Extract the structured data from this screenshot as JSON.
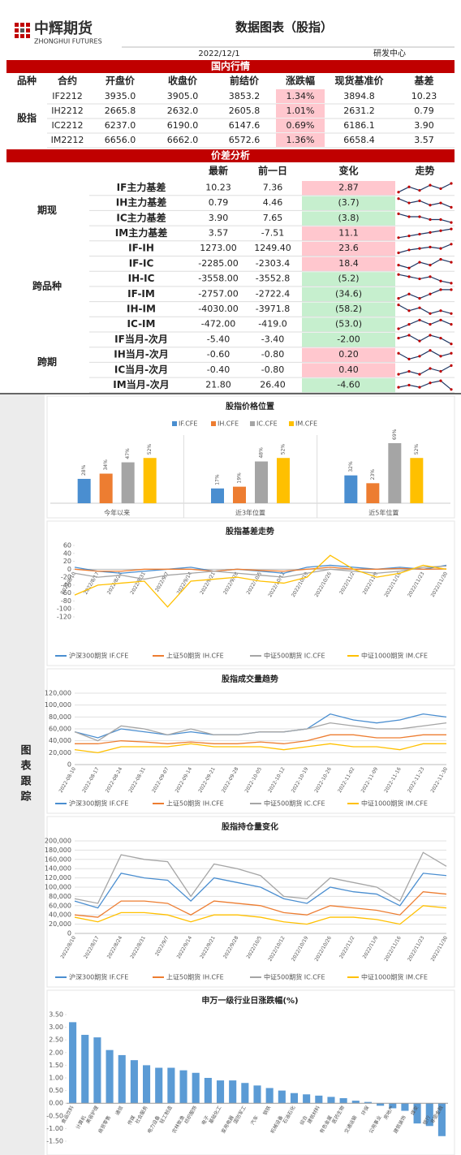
{
  "header": {
    "logo_cn": "中辉期货",
    "logo_en": "ZHONGHUI FUTURES",
    "title": "数据图表（股指）",
    "date": "2022/12/1",
    "dept": "研发中心"
  },
  "table_market": {
    "band": "国内行情",
    "columns": [
      "品种",
      "合约",
      "开盘价",
      "收盘价",
      "前结价",
      "涨跌幅",
      "现货基准价",
      "基差"
    ],
    "group": "股指",
    "rows": [
      {
        "cells": [
          "IF2212",
          "3935.0",
          "3905.0",
          "3853.2",
          "1.34%",
          "3894.8",
          "10.23"
        ],
        "color": "#ffc7ce"
      },
      {
        "cells": [
          "IH2212",
          "2665.8",
          "2632.0",
          "2605.8",
          "1.01%",
          "2631.2",
          "0.79"
        ],
        "color": "#ffc7ce"
      },
      {
        "cells": [
          "IC2212",
          "6237.0",
          "6190.0",
          "6147.6",
          "0.69%",
          "6186.1",
          "3.90"
        ],
        "color": "#ffc7ce"
      },
      {
        "cells": [
          "IM2212",
          "6656.0",
          "6662.0",
          "6572.6",
          "1.36%",
          "6658.4",
          "3.57"
        ],
        "color": "#ffc7ce"
      }
    ]
  },
  "table_spread": {
    "band": "价差分析",
    "columns": [
      "最新",
      "前一日",
      "变化",
      "走势"
    ],
    "groups": [
      {
        "name": "期现",
        "rows": [
          {
            "name": "IF主力基差",
            "latest": "10.23",
            "prev": "7.36",
            "change": "2.87",
            "color": "#ffc7ce",
            "trend": [
              3,
              6,
              4,
              7,
              5,
              8
            ]
          },
          {
            "name": "IH主力基差",
            "latest": "0.79",
            "prev": "4.46",
            "change": "(3.7)",
            "color": "#c6efce",
            "trend": [
              7,
              5,
              6,
              4,
              5,
              3
            ]
          },
          {
            "name": "IC主力基差",
            "latest": "3.90",
            "prev": "7.65",
            "change": "(3.8)",
            "color": "#c6efce",
            "trend": [
              6,
              5,
              5,
              4,
              4,
              3
            ]
          },
          {
            "name": "IM主力基差",
            "latest": "3.57",
            "prev": "-7.51",
            "change": "11.1",
            "color": "#ffc7ce",
            "trend": [
              2,
              3,
              4,
              5,
              6,
              7
            ]
          }
        ]
      },
      {
        "name": "跨品种",
        "rows": [
          {
            "name": "IF-IH",
            "latest": "1273.00",
            "prev": "1249.40",
            "change": "23.6",
            "color": "#ffc7ce",
            "trend": [
              2,
              4,
              5,
              6,
              5,
              8
            ]
          },
          {
            "name": "IF-IC",
            "latest": "-2285.00",
            "prev": "-2303.4",
            "change": "18.4",
            "color": "#ffc7ce",
            "trend": [
              5,
              4,
              6,
              5,
              7,
              6
            ]
          },
          {
            "name": "IH-IC",
            "latest": "-3558.00",
            "prev": "-3552.8",
            "change": "(5.2)",
            "color": "#c6efce",
            "trend": [
              6,
              5,
              4,
              5,
              3,
              2
            ]
          },
          {
            "name": "IF-IM",
            "latest": "-2757.00",
            "prev": "-2722.4",
            "change": "(34.6)",
            "color": "#c6efce",
            "trend": [
              3,
              4,
              3,
              4,
              5,
              5
            ]
          },
          {
            "name": "IH-IM",
            "latest": "-4030.00",
            "prev": "-3971.8",
            "change": "(58.2)",
            "color": "#c6efce",
            "trend": [
              6,
              4,
              5,
              3,
              4,
              3
            ]
          },
          {
            "name": "IC-IM",
            "latest": "-472.00",
            "prev": "-419.0",
            "change": "(53.0)",
            "color": "#c6efce",
            "trend": [
              4,
              5,
              6,
              5,
              6,
              5
            ]
          }
        ]
      },
      {
        "name": "跨期",
        "rows": [
          {
            "name": "IF当月-次月",
            "latest": "-5.40",
            "prev": "-3.40",
            "change": "-2.00",
            "color": "#c6efce",
            "trend": [
              4,
              5,
              3,
              5,
              4,
              2
            ]
          },
          {
            "name": "IH当月-次月",
            "latest": "-0.60",
            "prev": "-0.80",
            "change": "0.20",
            "color": "#ffc7ce",
            "trend": [
              5,
              3,
              4,
              6,
              4,
              5
            ]
          },
          {
            "name": "IC当月-次月",
            "latest": "-0.40",
            "prev": "-0.80",
            "change": "0.40",
            "color": "#ffc7ce",
            "trend": [
              3,
              4,
              3,
              5,
              4,
              6
            ]
          },
          {
            "name": "IM当月-次月",
            "latest": "21.80",
            "prev": "26.40",
            "change": "-4.60",
            "color": "#c6efce",
            "trend": [
              3,
              4,
              3,
              5,
              6,
              2
            ]
          }
        ]
      }
    ]
  },
  "side_label": "图表跟踪",
  "chart_data": [
    {
      "type": "grouped_bar",
      "title": "股指价格位置",
      "categories": [
        "今年以来",
        "近3年位置",
        "近5年位置"
      ],
      "series": [
        {
          "name": "IF.CFE",
          "color": "#4a8ed0",
          "values": [
            28,
            17,
            32
          ],
          "value_labels": [
            "28%",
            "17%",
            "32%"
          ]
        },
        {
          "name": "IH.CFE",
          "color": "#ed7d31",
          "values": [
            34,
            19,
            23
          ],
          "value_labels": [
            "34%",
            "19%",
            "23%"
          ]
        },
        {
          "name": "IC.CFE",
          "color": "#a5a5a5",
          "values": [
            47,
            48,
            69
          ],
          "value_labels": [
            "47%",
            "48%",
            "69%"
          ]
        },
        {
          "name": "IM.CFE",
          "color": "#ffc000",
          "values": [
            52,
            52,
            52
          ],
          "value_labels": [
            "52%",
            "52%",
            "52%"
          ]
        }
      ]
    },
    {
      "type": "line",
      "title": "股指基差走势",
      "grid": false,
      "categories": [
        "2022/8/10",
        "2022/8/17",
        "2022/8/24",
        "2022/8/31",
        "2022/9/7",
        "2022/9/14",
        "2022/9/21",
        "2022/9/28",
        "2022/10/5",
        "2022/10/12",
        "2022/10/19",
        "2022/10/26",
        "2022/11/2",
        "2022/11/9",
        "2022/11/16",
        "2022/11/23",
        "2022/11/30"
      ],
      "ylim": [
        -120,
        60
      ],
      "yticks": [
        60,
        40,
        20,
        0,
        -20,
        -40,
        -60,
        -80,
        -100,
        -120
      ],
      "series": [
        {
          "name": "沪深300期货 IF.CFE",
          "color": "#4a8ed0",
          "values": [
            5,
            -5,
            -10,
            -5,
            0,
            5,
            -5,
            0,
            -5,
            -10,
            5,
            10,
            5,
            0,
            5,
            0,
            10
          ]
        },
        {
          "name": "上证50期货 IH.CFE",
          "color": "#ed7d31",
          "values": [
            0,
            -5,
            -5,
            0,
            0,
            0,
            -5,
            0,
            -3,
            -5,
            0,
            5,
            0,
            0,
            2,
            0,
            1
          ]
        },
        {
          "name": "中证500期货 IC.CFE",
          "color": "#a5a5a5",
          "values": [
            -10,
            -20,
            -15,
            -25,
            -15,
            -10,
            -5,
            -10,
            -15,
            -20,
            -10,
            0,
            -5,
            -10,
            -5,
            5,
            8
          ]
        },
        {
          "name": "中证1000期货 IM.CFE",
          "color": "#ffc000",
          "values": [
            -65,
            -40,
            -35,
            -30,
            -95,
            -30,
            -25,
            -20,
            -30,
            -35,
            -20,
            35,
            0,
            -20,
            -10,
            10,
            0
          ]
        }
      ]
    },
    {
      "type": "line",
      "title": "股指成交量趋势",
      "grid": true,
      "categories": [
        "2022-08-10",
        "2022-08-17",
        "2022-08-24",
        "2022-08-31",
        "2022-09-07",
        "2022-09-14",
        "2022-09-21",
        "2022-09-28",
        "2022-10-05",
        "2022-10-12",
        "2022-10-19",
        "2022-10-26",
        "2022-11-02",
        "2022-11-09",
        "2022-11-16",
        "2022-11-23",
        "2022-11-30"
      ],
      "ylim": [
        0,
        120000
      ],
      "yticks": [
        0,
        {
          "value": 20000,
          "label": "20,000"
        },
        {
          "value": 40000,
          "label": "40,000"
        },
        {
          "value": 60000,
          "label": "60,000"
        },
        {
          "value": 80000,
          "label": "80,000"
        },
        {
          "value": 100000,
          "label": "100,000"
        },
        {
          "value": 120000,
          "label": "120,000"
        }
      ],
      "series": [
        {
          "name": "沪深300期货 IF.CFE",
          "color": "#4a8ed0",
          "values": [
            55000,
            45000,
            60000,
            55000,
            50000,
            55000,
            50000,
            50000,
            55000,
            55000,
            60000,
            85000,
            75000,
            70000,
            75000,
            85000,
            80000
          ]
        },
        {
          "name": "上证50期货 IH.CFE",
          "color": "#ed7d31",
          "values": [
            35000,
            35000,
            40000,
            38000,
            35000,
            38000,
            35000,
            35000,
            38000,
            35000,
            40000,
            50000,
            50000,
            45000,
            45000,
            50000,
            50000
          ]
        },
        {
          "name": "中证500期货 IC.CFE",
          "color": "#a5a5a5",
          "values": [
            55000,
            40000,
            65000,
            60000,
            50000,
            60000,
            50000,
            50000,
            55000,
            55000,
            60000,
            70000,
            65000,
            60000,
            60000,
            65000,
            70000
          ]
        },
        {
          "name": "中证1000期货 IM.CFE",
          "color": "#ffc000",
          "values": [
            25000,
            20000,
            30000,
            30000,
            30000,
            35000,
            30000,
            30000,
            30000,
            25000,
            30000,
            35000,
            30000,
            30000,
            25000,
            35000,
            35000
          ]
        }
      ]
    },
    {
      "type": "line",
      "title": "股指持仓量变化",
      "grid": true,
      "categories": [
        "2022/8/10",
        "2022/8/17",
        "2022/8/24",
        "2022/8/31",
        "2022/9/7",
        "2022/9/14",
        "2022/9/21",
        "2022/9/28",
        "2022/10/5",
        "2022/10/12",
        "2022/10/19",
        "2022/10/26",
        "2022/11/2",
        "2022/11/9",
        "2022/11/16",
        "2022/11/23",
        "2022/11/30"
      ],
      "ylim": [
        0,
        200000
      ],
      "yticks": [
        0,
        {
          "value": 20000,
          "label": "20,000"
        },
        {
          "value": 40000,
          "label": "40,000"
        },
        {
          "value": 60000,
          "label": "60,000"
        },
        {
          "value": 80000,
          "label": "80,000"
        },
        {
          "value": 100000,
          "label": "100,000"
        },
        {
          "value": 120000,
          "label": "120,000"
        },
        {
          "value": 140000,
          "label": "140,000"
        },
        {
          "value": 160000,
          "label": "160,000"
        },
        {
          "value": 180000,
          "label": "180,000"
        },
        {
          "value": 200000,
          "label": "200,000"
        }
      ],
      "series": [
        {
          "name": "沪深300期货 IF.CFE",
          "color": "#4a8ed0",
          "values": [
            70000,
            55000,
            130000,
            120000,
            115000,
            70000,
            120000,
            110000,
            100000,
            75000,
            65000,
            100000,
            90000,
            85000,
            60000,
            130000,
            125000
          ]
        },
        {
          "name": "上证50期货 IH.CFE",
          "color": "#ed7d31",
          "values": [
            40000,
            35000,
            70000,
            70000,
            65000,
            40000,
            70000,
            65000,
            60000,
            45000,
            40000,
            60000,
            55000,
            50000,
            40000,
            90000,
            85000
          ]
        },
        {
          "name": "中证500期货 IC.CFE",
          "color": "#a5a5a5",
          "values": [
            75000,
            65000,
            170000,
            160000,
            155000,
            80000,
            150000,
            140000,
            125000,
            80000,
            75000,
            120000,
            110000,
            100000,
            70000,
            175000,
            145000
          ]
        },
        {
          "name": "中证1000期货 IM.CFE",
          "color": "#ffc000",
          "values": [
            35000,
            25000,
            45000,
            45000,
            40000,
            25000,
            40000,
            40000,
            35000,
            25000,
            20000,
            35000,
            35000,
            30000,
            20000,
            60000,
            55000
          ]
        }
      ]
    },
    {
      "type": "bar",
      "title": "申万一级行业日涨跌幅(%)",
      "color": "#5b9bd5",
      "categories": [
        "食品饮料",
        "计算机",
        "美容护理",
        "商贸零售",
        "通信",
        "传媒",
        "社会服务",
        "电力设备",
        "轻工制造",
        "农林牧渔",
        "纺织服饰",
        "电子",
        "基础化工",
        "家用电器",
        "国防军工",
        "汽车",
        "钢铁",
        "机械设备",
        "石油石化",
        "综合",
        "建筑材料",
        "有色金属",
        "医药生物",
        "交通运输",
        "环保",
        "公用事业",
        "房地产",
        "建筑装饰",
        "煤炭",
        "银行",
        "非银金融"
      ],
      "values": [
        3.2,
        2.7,
        2.6,
        2.1,
        1.9,
        1.7,
        1.5,
        1.4,
        1.4,
        1.3,
        1.2,
        1.0,
        0.9,
        0.9,
        0.8,
        0.7,
        0.6,
        0.5,
        0.4,
        0.35,
        0.3,
        0.25,
        0.2,
        0.1,
        0.05,
        -0.1,
        -0.2,
        -0.3,
        -0.8,
        -0.9,
        -1.3
      ],
      "ylim": [
        -1.5,
        3.5
      ],
      "yticks": [
        {
          "value": 3.5,
          "label": "3.50"
        },
        {
          "value": 3,
          "label": "3.00"
        },
        {
          "value": 2.5,
          "label": "2.50"
        },
        {
          "value": 2,
          "label": "2.00"
        },
        {
          "value": 1.5,
          "label": "1.50"
        },
        {
          "value": 1,
          "label": "1.00"
        },
        {
          "value": 0.5,
          "label": "0.50"
        },
        {
          "value": 0,
          "label": "0.00"
        },
        {
          "value": -0.5,
          "label": "-0.50"
        },
        {
          "value": -1,
          "label": "-1.00"
        },
        {
          "value": -1.5,
          "label": "-1.50"
        }
      ]
    }
  ]
}
